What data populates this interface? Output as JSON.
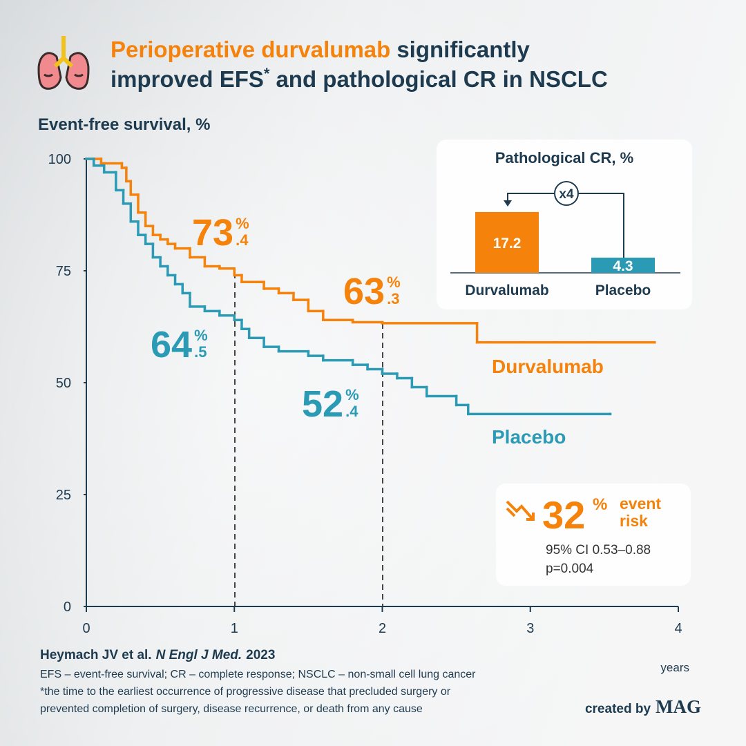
{
  "header": {
    "title_highlight": "Perioperative durvalumab",
    "title_line1_rest": "significantly",
    "title_line2": "improved EFS",
    "title_sup": "*",
    "title_line2_rest": "and pathological CR in NSCLC"
  },
  "chart_data": [
    {
      "type": "line",
      "y_label": "Event-free survival, %",
      "x_label": "years",
      "xlim": [
        0,
        4
      ],
      "ylim": [
        0,
        100
      ],
      "xticks": [
        0,
        1,
        2,
        3,
        4
      ],
      "yticks": [
        0,
        25,
        50,
        75,
        100
      ],
      "series": [
        {
          "name": "Durvalumab",
          "color": "#f5820a",
          "x": [
            0,
            0.1,
            0.24,
            0.27,
            0.3,
            0.35,
            0.4,
            0.45,
            0.5,
            0.55,
            0.6,
            0.7,
            0.8,
            0.9,
            1.0,
            1.05,
            1.2,
            1.3,
            1.4,
            1.5,
            1.6,
            1.8,
            2.0,
            2.64,
            3.84
          ],
          "values": [
            100,
            99,
            98,
            95,
            92,
            88,
            85,
            83,
            82,
            81,
            80,
            78,
            76,
            75.5,
            74,
            72.5,
            71,
            70,
            68.5,
            66,
            64,
            63.5,
            63.3,
            59,
            59
          ]
        },
        {
          "name": "Placebo",
          "color": "#2a9ab5",
          "x": [
            0,
            0.05,
            0.12,
            0.2,
            0.25,
            0.3,
            0.35,
            0.4,
            0.45,
            0.5,
            0.55,
            0.6,
            0.65,
            0.7,
            0.8,
            0.9,
            1.0,
            1.05,
            1.1,
            1.2,
            1.3,
            1.5,
            1.6,
            1.8,
            1.9,
            2.0,
            2.1,
            2.2,
            2.3,
            2.5,
            2.58,
            3.54
          ],
          "values": [
            100,
            98.5,
            97,
            93,
            90,
            86,
            83,
            81,
            78,
            76,
            74,
            72,
            70,
            67,
            66,
            65,
            64,
            62,
            60,
            58,
            57,
            56,
            55,
            54,
            53,
            52,
            51,
            49,
            47,
            45,
            43,
            43
          ]
        }
      ],
      "annotations": [
        {
          "text": "73",
          "sup": "%",
          "sub": ".4",
          "color": "#f5820a"
        },
        {
          "text": "63",
          "sup": "%",
          "sub": ".3",
          "color": "#f5820a"
        },
        {
          "text": "64",
          "sup": "%",
          "sub": ".5",
          "color": "#2a9ab5"
        },
        {
          "text": "52",
          "sup": "%",
          "sub": ".4",
          "color": "#2a9ab5"
        }
      ]
    },
    {
      "type": "bar",
      "title": "Pathological CR, %",
      "categories": [
        "Durvalumab",
        "Placebo"
      ],
      "values": [
        17.2,
        4.3
      ],
      "colors": [
        "#f5820a",
        "#2a9ab5"
      ],
      "annotation": "x4"
    }
  ],
  "hazard": {
    "value": "32",
    "sup": "%",
    "label_line1": "event",
    "label_line2": "risk",
    "ci": "95% CI 0.53–0.88",
    "p": "p=0.004"
  },
  "footer": {
    "citation_authors": "Heymach JV et al.",
    "citation_journal": "N Engl J Med.",
    "citation_year": "2023",
    "abbreviations": "EFS – event-free survival; CR – complete response; NSCLC – non-small cell lung cancer",
    "note_line1": "*the time to the earliest occurrence of progressive disease that precluded surgery or",
    "note_line2": "prevented completion of surgery, disease recurrence, or death from any cause",
    "credit": "created by",
    "brand": "MAG"
  }
}
